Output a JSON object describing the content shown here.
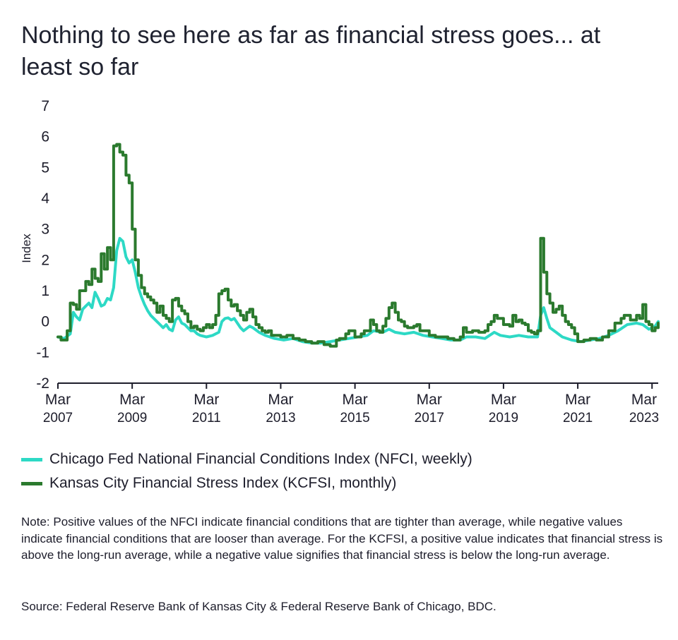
{
  "title": "Nothing to see here as far as financial stress goes... at least so far",
  "legend": {
    "nfci": "Chicago Fed National Financial Conditions Index (NFCI, weekly)",
    "kcfsi": "Kansas City Financial Stress Index (KCFSI, monthly)"
  },
  "note": "Note: Positive values of the NFCI indicate financial conditions that are tighter than average, while negative values indicate financial conditions that are looser than average. For the KCFSI, a positive value indicates that financial stress is above the long-run average, while a negative value signifies that financial stress is below the long-run average.",
  "source": "Source: Federal Reserve Bank of Kansas City & Federal Reserve Bank of Chicago, BDC.",
  "colors": {
    "nfci": "#2dd9c5",
    "kcfsi": "#2b7a2e",
    "axis": "#1d1d2b"
  },
  "chart_data": {
    "type": "line",
    "ylabel": "Index",
    "ylim": [
      -2,
      7
    ],
    "yticks": [
      "-2",
      "-1",
      "0",
      "1",
      "2",
      "3",
      "4",
      "5",
      "6",
      "7"
    ],
    "xlim": [
      "2007-03",
      "2023-05"
    ],
    "xticks": [
      {
        "month": "Mar",
        "year": "2007",
        "x": "2007-03"
      },
      {
        "month": "Mar",
        "year": "2009",
        "x": "2009-03"
      },
      {
        "month": "Mar",
        "year": "2011",
        "x": "2011-03"
      },
      {
        "month": "Mar",
        "year": "2013",
        "x": "2013-03"
      },
      {
        "month": "Mar",
        "year": "2015",
        "x": "2015-03"
      },
      {
        "month": "Mar",
        "year": "2017",
        "x": "2017-03"
      },
      {
        "month": "Mar",
        "year": "2019",
        "x": "2019-03"
      },
      {
        "month": "Mar",
        "year": "2021",
        "x": "2021-03"
      },
      {
        "month": "Mar",
        "year": "2023",
        "x": "2023-03"
      }
    ],
    "series": [
      {
        "name": "Chicago Fed National Financial Conditions Index (NFCI, weekly)",
        "points": [
          [
            "2007-03",
            -0.5
          ],
          [
            "2007-05",
            -0.55
          ],
          [
            "2007-07",
            -0.4
          ],
          [
            "2007-08",
            0.3
          ],
          [
            "2007-09",
            0.15
          ],
          [
            "2007-10",
            0.05
          ],
          [
            "2007-11",
            0.4
          ],
          [
            "2007-12",
            0.5
          ],
          [
            "2008-01",
            0.6
          ],
          [
            "2008-02",
            0.45
          ],
          [
            "2008-03",
            0.95
          ],
          [
            "2008-04",
            0.75
          ],
          [
            "2008-05",
            0.5
          ],
          [
            "2008-06",
            0.55
          ],
          [
            "2008-07",
            0.75
          ],
          [
            "2008-08",
            0.7
          ],
          [
            "2008-09",
            1.1
          ],
          [
            "2008-10",
            2.3
          ],
          [
            "2008-11",
            2.7
          ],
          [
            "2008-12",
            2.6
          ],
          [
            "2009-01",
            2.1
          ],
          [
            "2009-02",
            1.9
          ],
          [
            "2009-03",
            2.0
          ],
          [
            "2009-04",
            1.6
          ],
          [
            "2009-05",
            1.1
          ],
          [
            "2009-06",
            0.8
          ],
          [
            "2009-07",
            0.55
          ],
          [
            "2009-08",
            0.35
          ],
          [
            "2009-09",
            0.2
          ],
          [
            "2009-10",
            0.1
          ],
          [
            "2009-11",
            0.0
          ],
          [
            "2009-12",
            -0.1
          ],
          [
            "2010-01",
            -0.2
          ],
          [
            "2010-02",
            -0.1
          ],
          [
            "2010-03",
            -0.25
          ],
          [
            "2010-04",
            -0.3
          ],
          [
            "2010-05",
            0.05
          ],
          [
            "2010-06",
            0.15
          ],
          [
            "2010-07",
            -0.05
          ],
          [
            "2010-08",
            -0.1
          ],
          [
            "2010-09",
            -0.2
          ],
          [
            "2010-10",
            -0.3
          ],
          [
            "2010-11",
            -0.3
          ],
          [
            "2010-12",
            -0.4
          ],
          [
            "2011-01",
            -0.45
          ],
          [
            "2011-03",
            -0.5
          ],
          [
            "2011-05",
            -0.45
          ],
          [
            "2011-07",
            -0.35
          ],
          [
            "2011-08",
            0.0
          ],
          [
            "2011-09",
            0.1
          ],
          [
            "2011-10",
            0.12
          ],
          [
            "2011-11",
            0.05
          ],
          [
            "2011-12",
            0.1
          ],
          [
            "2012-01",
            -0.05
          ],
          [
            "2012-02",
            -0.2
          ],
          [
            "2012-03",
            -0.3
          ],
          [
            "2012-05",
            -0.15
          ],
          [
            "2012-06",
            -0.2
          ],
          [
            "2012-08",
            -0.35
          ],
          [
            "2012-10",
            -0.45
          ],
          [
            "2013-01",
            -0.55
          ],
          [
            "2013-04",
            -0.6
          ],
          [
            "2013-07",
            -0.55
          ],
          [
            "2013-10",
            -0.65
          ],
          [
            "2014-01",
            -0.7
          ],
          [
            "2014-04",
            -0.7
          ],
          [
            "2014-07",
            -0.65
          ],
          [
            "2014-10",
            -0.6
          ],
          [
            "2015-01",
            -0.55
          ],
          [
            "2015-04",
            -0.5
          ],
          [
            "2015-07",
            -0.45
          ],
          [
            "2015-09",
            -0.3
          ],
          [
            "2015-12",
            -0.35
          ],
          [
            "2016-02",
            -0.25
          ],
          [
            "2016-04",
            -0.35
          ],
          [
            "2016-07",
            -0.4
          ],
          [
            "2016-10",
            -0.35
          ],
          [
            "2017-01",
            -0.45
          ],
          [
            "2017-04",
            -0.5
          ],
          [
            "2017-07",
            -0.55
          ],
          [
            "2017-10",
            -0.6
          ],
          [
            "2018-01",
            -0.6
          ],
          [
            "2018-03",
            -0.5
          ],
          [
            "2018-06",
            -0.5
          ],
          [
            "2018-09",
            -0.55
          ],
          [
            "2018-12",
            -0.35
          ],
          [
            "2019-02",
            -0.45
          ],
          [
            "2019-05",
            -0.5
          ],
          [
            "2019-08",
            -0.45
          ],
          [
            "2019-11",
            -0.5
          ],
          [
            "2020-02",
            -0.5
          ],
          [
            "2020-03",
            0.2
          ],
          [
            "2020-04",
            0.45
          ],
          [
            "2020-05",
            0.1
          ],
          [
            "2020-06",
            -0.2
          ],
          [
            "2020-08",
            -0.35
          ],
          [
            "2020-10",
            -0.5
          ],
          [
            "2021-01",
            -0.6
          ],
          [
            "2021-04",
            -0.65
          ],
          [
            "2021-07",
            -0.6
          ],
          [
            "2021-10",
            -0.55
          ],
          [
            "2022-01",
            -0.45
          ],
          [
            "2022-04",
            -0.3
          ],
          [
            "2022-07",
            -0.1
          ],
          [
            "2022-10",
            -0.05
          ],
          [
            "2022-12",
            -0.1
          ],
          [
            "2023-02",
            -0.25
          ],
          [
            "2023-04",
            -0.15
          ],
          [
            "2023-05",
            0.0
          ]
        ]
      },
      {
        "name": "Kansas City Financial Stress Index (KCFSI, monthly)",
        "points": [
          [
            "2007-03",
            -0.5
          ],
          [
            "2007-04",
            -0.6
          ],
          [
            "2007-05",
            -0.6
          ],
          [
            "2007-06",
            -0.3
          ],
          [
            "2007-07",
            0.6
          ],
          [
            "2007-08",
            0.55
          ],
          [
            "2007-09",
            0.4
          ],
          [
            "2007-10",
            1.0
          ],
          [
            "2007-11",
            1.0
          ],
          [
            "2007-12",
            1.3
          ],
          [
            "2008-01",
            1.2
          ],
          [
            "2008-02",
            1.7
          ],
          [
            "2008-03",
            1.4
          ],
          [
            "2008-04",
            1.3
          ],
          [
            "2008-05",
            2.2
          ],
          [
            "2008-06",
            1.7
          ],
          [
            "2008-07",
            2.4
          ],
          [
            "2008-08",
            2.0
          ],
          [
            "2008-09",
            5.7
          ],
          [
            "2008-10",
            5.75
          ],
          [
            "2008-11",
            5.5
          ],
          [
            "2008-12",
            5.4
          ],
          [
            "2009-01",
            4.75
          ],
          [
            "2009-02",
            4.5
          ],
          [
            "2009-03",
            3.0
          ],
          [
            "2009-04",
            2.0
          ],
          [
            "2009-05",
            1.5
          ],
          [
            "2009-06",
            1.1
          ],
          [
            "2009-07",
            0.9
          ],
          [
            "2009-08",
            0.8
          ],
          [
            "2009-09",
            0.7
          ],
          [
            "2009-10",
            0.6
          ],
          [
            "2009-11",
            0.3
          ],
          [
            "2009-12",
            0.5
          ],
          [
            "2010-01",
            0.2
          ],
          [
            "2010-02",
            0.1
          ],
          [
            "2010-03",
            0.0
          ],
          [
            "2010-04",
            0.7
          ],
          [
            "2010-05",
            0.75
          ],
          [
            "2010-06",
            0.5
          ],
          [
            "2010-07",
            0.35
          ],
          [
            "2010-08",
            0.25
          ],
          [
            "2010-09",
            0.0
          ],
          [
            "2010-10",
            -0.2
          ],
          [
            "2010-11",
            -0.15
          ],
          [
            "2010-12",
            -0.25
          ],
          [
            "2011-01",
            -0.3
          ],
          [
            "2011-02",
            -0.2
          ],
          [
            "2011-03",
            -0.1
          ],
          [
            "2011-04",
            -0.2
          ],
          [
            "2011-05",
            -0.1
          ],
          [
            "2011-06",
            0.2
          ],
          [
            "2011-07",
            0.9
          ],
          [
            "2011-08",
            1.0
          ],
          [
            "2011-09",
            1.05
          ],
          [
            "2011-10",
            0.7
          ],
          [
            "2011-11",
            0.5
          ],
          [
            "2011-12",
            0.55
          ],
          [
            "2012-01",
            0.35
          ],
          [
            "2012-02",
            0.2
          ],
          [
            "2012-03",
            0.05
          ],
          [
            "2012-04",
            0.3
          ],
          [
            "2012-05",
            0.4
          ],
          [
            "2012-06",
            0.15
          ],
          [
            "2012-07",
            -0.1
          ],
          [
            "2012-08",
            -0.2
          ],
          [
            "2012-09",
            -0.3
          ],
          [
            "2012-10",
            -0.35
          ],
          [
            "2012-11",
            -0.3
          ],
          [
            "2012-12",
            -0.45
          ],
          [
            "2013-01",
            -0.45
          ],
          [
            "2013-03",
            -0.5
          ],
          [
            "2013-05",
            -0.45
          ],
          [
            "2013-07",
            -0.55
          ],
          [
            "2013-09",
            -0.6
          ],
          [
            "2013-11",
            -0.65
          ],
          [
            "2014-01",
            -0.7
          ],
          [
            "2014-03",
            -0.65
          ],
          [
            "2014-05",
            -0.75
          ],
          [
            "2014-07",
            -0.8
          ],
          [
            "2014-09",
            -0.6
          ],
          [
            "2014-10",
            -0.55
          ],
          [
            "2014-12",
            -0.4
          ],
          [
            "2015-01",
            -0.3
          ],
          [
            "2015-03",
            -0.5
          ],
          [
            "2015-05",
            -0.4
          ],
          [
            "2015-06",
            -0.3
          ],
          [
            "2015-07",
            -0.3
          ],
          [
            "2015-08",
            0.05
          ],
          [
            "2015-09",
            -0.1
          ],
          [
            "2015-10",
            -0.3
          ],
          [
            "2015-11",
            -0.35
          ],
          [
            "2015-12",
            -0.15
          ],
          [
            "2016-01",
            0.1
          ],
          [
            "2016-02",
            0.45
          ],
          [
            "2016-03",
            0.6
          ],
          [
            "2016-04",
            0.3
          ],
          [
            "2016-05",
            0.05
          ],
          [
            "2016-06",
            0.0
          ],
          [
            "2016-07",
            -0.15
          ],
          [
            "2016-08",
            -0.2
          ],
          [
            "2016-09",
            -0.2
          ],
          [
            "2016-10",
            -0.15
          ],
          [
            "2016-11",
            -0.1
          ],
          [
            "2016-12",
            -0.3
          ],
          [
            "2017-01",
            -0.3
          ],
          [
            "2017-03",
            -0.45
          ],
          [
            "2017-05",
            -0.5
          ],
          [
            "2017-07",
            -0.5
          ],
          [
            "2017-09",
            -0.55
          ],
          [
            "2017-11",
            -0.6
          ],
          [
            "2018-01",
            -0.5
          ],
          [
            "2018-02",
            -0.2
          ],
          [
            "2018-03",
            -0.35
          ],
          [
            "2018-05",
            -0.3
          ],
          [
            "2018-07",
            -0.35
          ],
          [
            "2018-09",
            -0.3
          ],
          [
            "2018-10",
            -0.1
          ],
          [
            "2018-11",
            0.0
          ],
          [
            "2018-12",
            0.2
          ],
          [
            "2019-01",
            0.1
          ],
          [
            "2019-03",
            -0.1
          ],
          [
            "2019-05",
            -0.15
          ],
          [
            "2019-06",
            0.2
          ],
          [
            "2019-07",
            0.0
          ],
          [
            "2019-08",
            0.05
          ],
          [
            "2019-09",
            -0.05
          ],
          [
            "2019-10",
            -0.1
          ],
          [
            "2019-11",
            -0.3
          ],
          [
            "2019-12",
            -0.35
          ],
          [
            "2020-01",
            -0.4
          ],
          [
            "2020-02",
            -0.3
          ],
          [
            "2020-03",
            2.7
          ],
          [
            "2020-04",
            1.6
          ],
          [
            "2020-05",
            0.9
          ],
          [
            "2020-06",
            0.6
          ],
          [
            "2020-07",
            0.3
          ],
          [
            "2020-08",
            0.4
          ],
          [
            "2020-09",
            0.5
          ],
          [
            "2020-10",
            0.2
          ],
          [
            "2020-11",
            0.0
          ],
          [
            "2020-12",
            -0.1
          ],
          [
            "2021-01",
            -0.2
          ],
          [
            "2021-02",
            -0.4
          ],
          [
            "2021-03",
            -0.65
          ],
          [
            "2021-05",
            -0.6
          ],
          [
            "2021-07",
            -0.55
          ],
          [
            "2021-09",
            -0.6
          ],
          [
            "2021-11",
            -0.5
          ],
          [
            "2022-01",
            -0.3
          ],
          [
            "2022-03",
            -0.05
          ],
          [
            "2022-05",
            0.1
          ],
          [
            "2022-06",
            0.2
          ],
          [
            "2022-08",
            0.05
          ],
          [
            "2022-10",
            0.2
          ],
          [
            "2022-11",
            0.1
          ],
          [
            "2022-12",
            0.55
          ],
          [
            "2023-01",
            0.0
          ],
          [
            "2023-02",
            -0.1
          ],
          [
            "2023-03",
            -0.3
          ],
          [
            "2023-04",
            -0.2
          ],
          [
            "2023-05",
            -0.05
          ]
        ]
      }
    ]
  }
}
